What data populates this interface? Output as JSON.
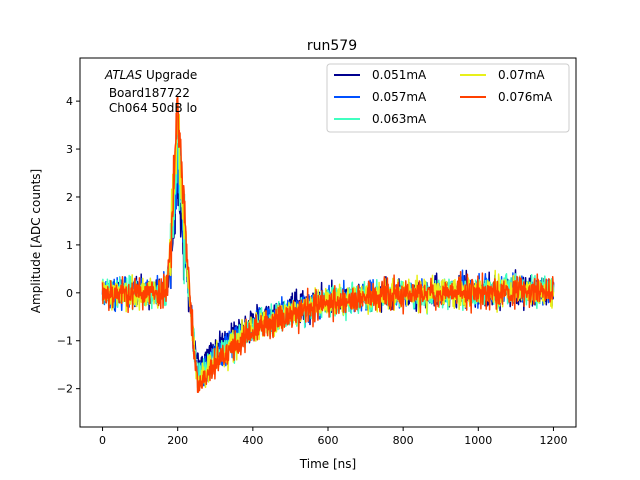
{
  "chart_data": {
    "type": "line",
    "title": "run579",
    "xlabel": "Time [ns]",
    "ylabel": "Amplitude [ADC counts]",
    "xlim": [
      -60,
      1260
    ],
    "ylim": [
      -2.8,
      4.9
    ],
    "xticks": [
      0,
      200,
      400,
      600,
      800,
      1000,
      1200
    ],
    "yticks": [
      -2,
      -1,
      0,
      1,
      2,
      3,
      4
    ],
    "annotation": {
      "italic_part": "ATLAS",
      "normal_part": " Upgrade",
      "line2": " Board187722",
      "line3": " Ch064 50dB lo"
    },
    "legend_position": "upper right",
    "legend_columns": 2,
    "series": [
      {
        "name": "0.051mA",
        "color": "#00008f",
        "peak": 2.5,
        "undershoot": -1.5,
        "noise": 0.26,
        "seed": 11
      },
      {
        "name": "0.057mA",
        "color": "#0050ff",
        "peak": 2.9,
        "undershoot": -1.7,
        "noise": 0.26,
        "seed": 23
      },
      {
        "name": "0.063mA",
        "color": "#40ffc0",
        "peak": 3.2,
        "undershoot": -1.8,
        "noise": 0.27,
        "seed": 37
      },
      {
        "name": "0.07mA",
        "color": "#e8f01a",
        "peak": 3.6,
        "undershoot": -1.9,
        "noise": 0.28,
        "seed": 41
      },
      {
        "name": "0.076mA",
        "color": "#ff4000",
        "peak": 4.1,
        "undershoot": -2.0,
        "noise": 0.28,
        "seed": 53
      }
    ],
    "x_range": [
      0,
      1200
    ],
    "n_samples": 1200
  }
}
